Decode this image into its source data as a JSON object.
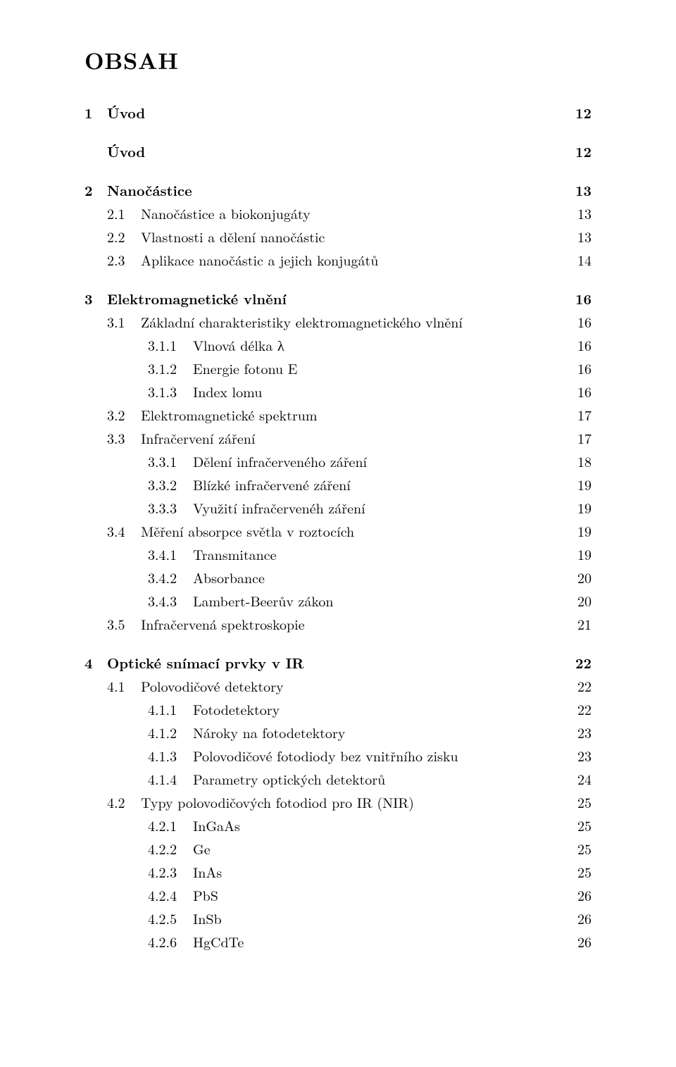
{
  "title": "OBSAH",
  "font": {
    "body_pt": 20,
    "title_pt": 32,
    "title_weight": "bold"
  },
  "colors": {
    "text": "#000000",
    "background": "#ffffff"
  },
  "entries": [
    {
      "level": "chapter",
      "num": "1",
      "title": "Úvod",
      "page": "12",
      "leader": false
    },
    {
      "level": "chapter",
      "num": "",
      "title": "Úvod",
      "page": "12",
      "leader": false
    },
    {
      "level": "chapter",
      "num": "2",
      "title": "Nanočástice",
      "page": "13",
      "leader": false
    },
    {
      "level": "section",
      "num": "2.1",
      "title": "Nanočástice a biokonjugáty",
      "page": "13",
      "leader": true
    },
    {
      "level": "section",
      "num": "2.2",
      "title": "Vlastnosti a dělení nanočástic",
      "page": "13",
      "leader": true
    },
    {
      "level": "section",
      "num": "2.3",
      "title": "Aplikace nanočástic a jejich konjugátů",
      "page": "14",
      "leader": true
    },
    {
      "level": "chapter",
      "num": "3",
      "title": "Elektromagnetické vlnění",
      "page": "16",
      "leader": false
    },
    {
      "level": "section",
      "num": "3.1",
      "title": "Základní charakteristiky elektromagnetického vlnění",
      "page": "16",
      "leader": true
    },
    {
      "level": "subsection",
      "num": "3.1.1",
      "title": "Vlnová délka λ",
      "page": "16",
      "leader": true
    },
    {
      "level": "subsection",
      "num": "3.1.2",
      "title": "Energie fotonu E",
      "page": "16",
      "leader": true
    },
    {
      "level": "subsection",
      "num": "3.1.3",
      "title": "Index lomu",
      "page": "16",
      "leader": true
    },
    {
      "level": "section",
      "num": "3.2",
      "title": "Elektromagnetické spektrum",
      "page": "17",
      "leader": true
    },
    {
      "level": "section",
      "num": "3.3",
      "title": "Infračervení záření",
      "page": "17",
      "leader": true
    },
    {
      "level": "subsection",
      "num": "3.3.1",
      "title": "Dělení infračerveného záření",
      "page": "18",
      "leader": true
    },
    {
      "level": "subsection",
      "num": "3.3.2",
      "title": "Blízké infračervené záření",
      "page": "19",
      "leader": true
    },
    {
      "level": "subsection",
      "num": "3.3.3",
      "title": "Využití infračervenéh záření",
      "page": "19",
      "leader": true
    },
    {
      "level": "section",
      "num": "3.4",
      "title": "Měření absorpce světla v roztocích",
      "page": "19",
      "leader": true
    },
    {
      "level": "subsection",
      "num": "3.4.1",
      "title": "Transmitance",
      "page": "19",
      "leader": true
    },
    {
      "level": "subsection",
      "num": "3.4.2",
      "title": "Absorbance",
      "page": "20",
      "leader": true
    },
    {
      "level": "subsection",
      "num": "3.4.3",
      "title": "Lambert-Beerův zákon",
      "page": "20",
      "leader": true
    },
    {
      "level": "section",
      "num": "3.5",
      "title": "Infračervená spektroskopie",
      "page": "21",
      "leader": true
    },
    {
      "level": "chapter",
      "num": "4",
      "title": "Optické snímací prvky v IR",
      "page": "22",
      "leader": false
    },
    {
      "level": "section",
      "num": "4.1",
      "title": "Polovodičové detektory",
      "page": "22",
      "leader": true
    },
    {
      "level": "subsection",
      "num": "4.1.1",
      "title": "Fotodetektory",
      "page": "22",
      "leader": true
    },
    {
      "level": "subsection",
      "num": "4.1.2",
      "title": "Nároky na fotodetektory",
      "page": "23",
      "leader": true
    },
    {
      "level": "subsection",
      "num": "4.1.3",
      "title": "Polovodičové fotodiody bez vnitřního zisku",
      "page": "23",
      "leader": true
    },
    {
      "level": "subsection",
      "num": "4.1.4",
      "title": "Parametry optických detektorů",
      "page": "24",
      "leader": true
    },
    {
      "level": "section",
      "num": "4.2",
      "title": "Typy polovodičových fotodiod pro IR (NIR)",
      "page": "25",
      "leader": true
    },
    {
      "level": "subsection",
      "num": "4.2.1",
      "title": "InGaAs",
      "page": "25",
      "leader": true
    },
    {
      "level": "subsection",
      "num": "4.2.2",
      "title": "Ge",
      "page": "25",
      "leader": true
    },
    {
      "level": "subsection",
      "num": "4.2.3",
      "title": "InAs",
      "page": "25",
      "leader": true
    },
    {
      "level": "subsection",
      "num": "4.2.4",
      "title": "PbS",
      "page": "26",
      "leader": true
    },
    {
      "level": "subsection",
      "num": "4.2.5",
      "title": "InSb",
      "page": "26",
      "leader": true
    },
    {
      "level": "subsection",
      "num": "4.2.6",
      "title": "HgCdTe",
      "page": "26",
      "leader": true
    }
  ]
}
